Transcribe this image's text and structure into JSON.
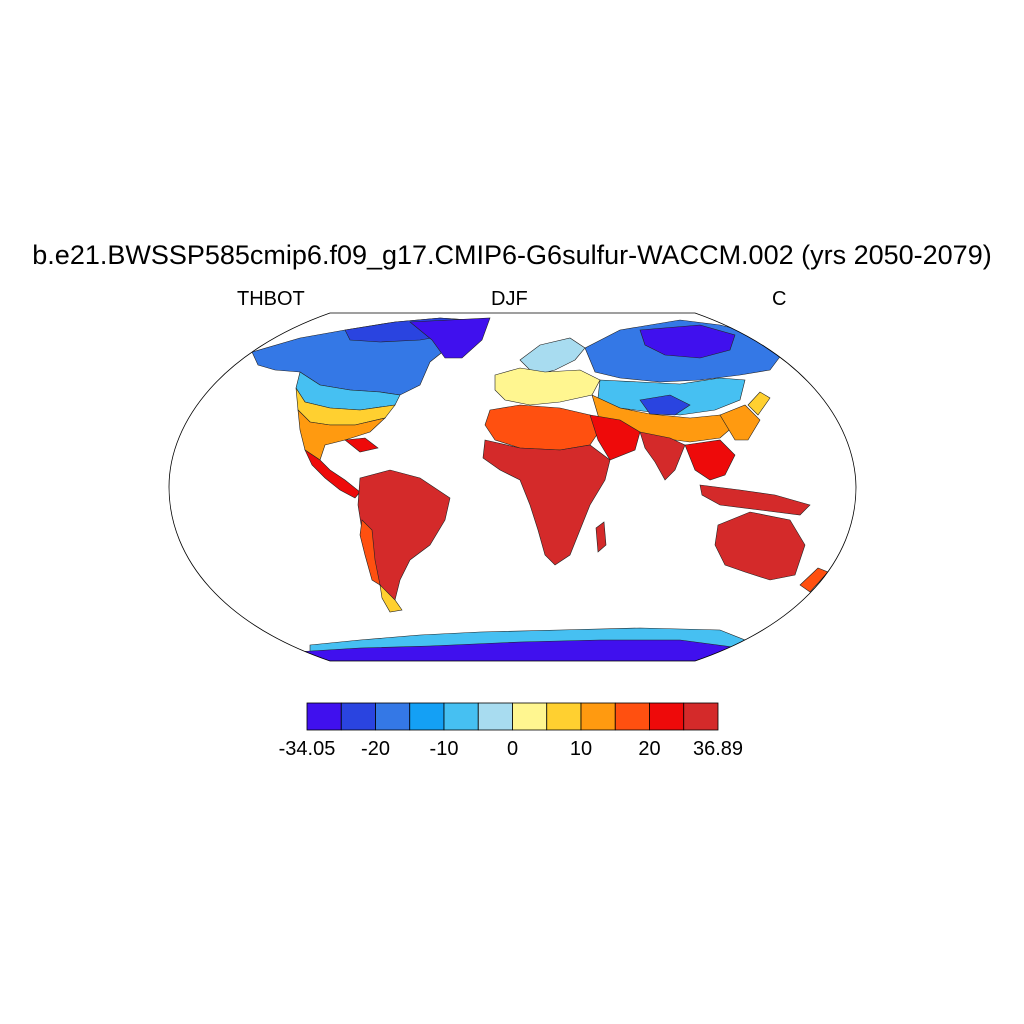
{
  "title": "b.e21.BWSSP585cmip6.f09_g17.CMIP6-G6sulfur-WACCM.002 (yrs 2050-2079)",
  "left_label": "THBOT",
  "center_label": "DJF",
  "right_label": "C",
  "colorbar": {
    "colors": [
      "#4010ee",
      "#2a44e0",
      "#3478e6",
      "#14a0f5",
      "#46c0f2",
      "#a8dcf0",
      "#fff690",
      "#ffd030",
      "#ff9a10",
      "#ff5010",
      "#ee0a0a",
      "#d42a2a"
    ],
    "tick_labels": [
      "-34.05",
      "-20",
      "-10",
      "0",
      "10",
      "20",
      "36.89"
    ]
  },
  "legend_colors": {
    "coldest": "#4010ee",
    "cold": "#3478e6",
    "cool": "#a8dcf0",
    "mild": "#fff690",
    "warm": "#ff9a10",
    "hottest": "#d42a2a",
    "ocean": "#ffffff"
  }
}
